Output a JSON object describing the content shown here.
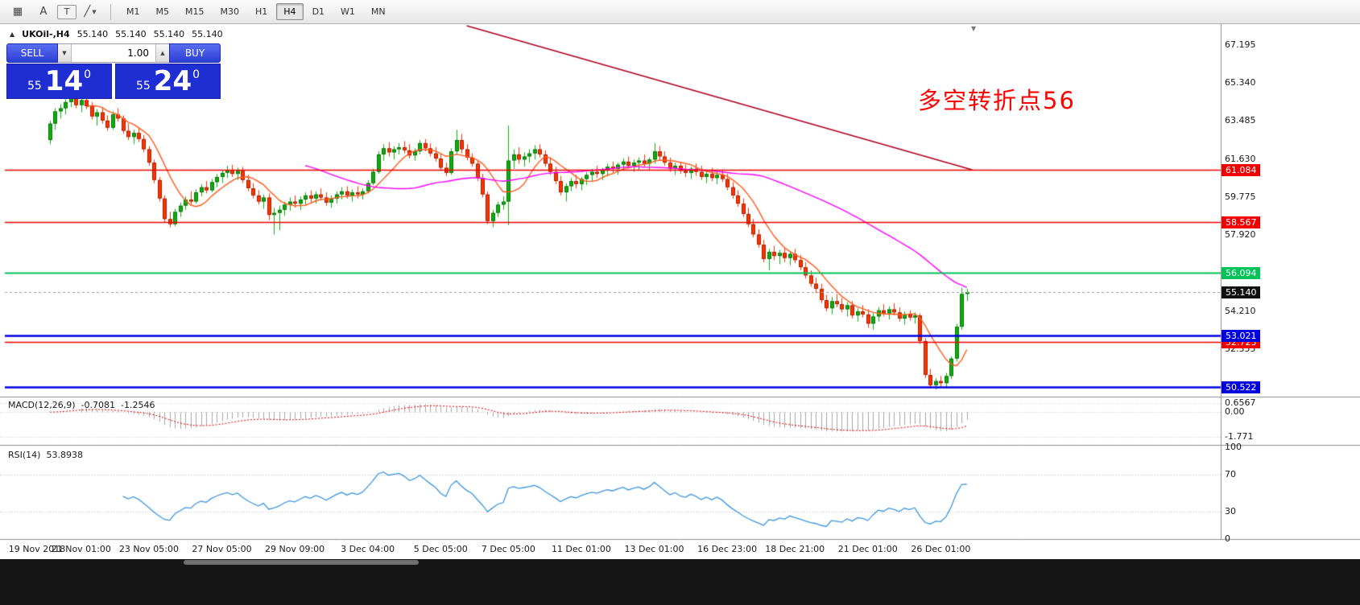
{
  "toolbar": {
    "tools": [
      {
        "name": "grid-tool",
        "glyph": "▦"
      },
      {
        "name": "text-tool",
        "glyph": "A"
      },
      {
        "name": "text-label-tool",
        "glyph": "T"
      },
      {
        "name": "shapes-tool",
        "glyph": "╱",
        "dropdown": "▼"
      }
    ],
    "timeframes": [
      "M1",
      "M5",
      "M15",
      "M30",
      "H1",
      "H4",
      "D1",
      "W1",
      "MN"
    ],
    "active_timeframe": "H4"
  },
  "chart_header": {
    "collapse_icon": "▲",
    "symbol": "UKOil-,H4",
    "open": "55.140",
    "high": "55.140",
    "low": "55.140",
    "close": "55.140",
    "shift_icon": "▼"
  },
  "trade_panel": {
    "sell_label": "SELL",
    "buy_label": "BUY",
    "volume": "1.00",
    "dropdown_icon": "▼",
    "spin_up_icon": "▲",
    "bid": {
      "prefix": "55",
      "big": "14",
      "sup": "0"
    },
    "ask": {
      "prefix": "55",
      "big": "24",
      "sup": "0"
    }
  },
  "annotation": {
    "text": "多空转折点56",
    "color": "#ff0000"
  },
  "price_axis": {
    "labels": [
      {
        "text": "67.195",
        "price": 67.195
      },
      {
        "text": "65.340",
        "price": 65.34
      },
      {
        "text": "63.485",
        "price": 63.485
      },
      {
        "text": "61.630",
        "price": 61.63
      },
      {
        "text": "59.775",
        "price": 59.775
      },
      {
        "text": "57.920",
        "price": 57.92
      },
      {
        "text": "54.210",
        "price": 54.21
      },
      {
        "text": "52.355",
        "price": 52.355
      }
    ]
  },
  "levels": [
    {
      "price": 61.084,
      "tag": "61.084",
      "color": "#f20000",
      "width": 1.4
    },
    {
      "price": 58.567,
      "tag": "58.567",
      "color": "#f20000",
      "width": 1.4
    },
    {
      "price": 56.094,
      "tag": "56.094",
      "color": "#00c45a",
      "width": 2.2
    },
    {
      "price": 53.021,
      "tag": "53.021",
      "color": "#0000e0",
      "width": 2.6
    },
    {
      "price": 52.723,
      "tag": "52.723",
      "color": "#f20000",
      "width": 1.4,
      "clipped": true
    },
    {
      "price": 50.522,
      "tag": "50.522",
      "color": "#0000e0",
      "width": 2.6
    }
  ],
  "current_price": {
    "price": 55.14,
    "tag": "55.140",
    "color": "#111111"
  },
  "trendline": {
    "bar1": 80,
    "price1": 68.12,
    "bar2": 177,
    "price2": 61.1,
    "color": "#b00020"
  },
  "indicators": {
    "macd": {
      "title": "MACD(12,26,9)",
      "value1": "-0.7081",
      "value2": "-1.2546",
      "axis": [
        {
          "text": "0.6567",
          "value": 0.6567
        },
        {
          "text": "0.00",
          "value": 0
        },
        {
          "text": "-1.771",
          "value": -1.771
        }
      ]
    },
    "rsi": {
      "title": "RSI(14)",
      "value": "53.8938",
      "axis": [
        {
          "text": "100",
          "value": 100
        },
        {
          "text": "70",
          "value": 70
        },
        {
          "text": "30",
          "value": 30
        },
        {
          "text": "0",
          "value": 0
        }
      ]
    }
  },
  "time_axis": [
    {
      "text": "19 Nov 2018",
      "bar": -5
    },
    {
      "text": "21 Nov 01:00",
      "bar": 6
    },
    {
      "text": "23 Nov 05:00",
      "bar": 19
    },
    {
      "text": "27 Nov 05:00",
      "bar": 33
    },
    {
      "text": "29 Nov 09:00",
      "bar": 47
    },
    {
      "text": "3 Dec 04:00",
      "bar": 61
    },
    {
      "text": "5 Dec 05:00",
      "bar": 75
    },
    {
      "text": "7 Dec 05:00",
      "bar": 88
    },
    {
      "text": "11 Dec 01:00",
      "bar": 102
    },
    {
      "text": "13 Dec 01:00",
      "bar": 116
    },
    {
      "text": "16 Dec 23:00",
      "bar": 130
    },
    {
      "text": "18 Dec 21:00",
      "bar": 143
    },
    {
      "text": "21 Dec 01:00",
      "bar": 157
    },
    {
      "text": "26 Dec 01:00",
      "bar": 171
    }
  ],
  "chart_data": {
    "type": "candlestick",
    "symbol": "UKOil-",
    "timeframe": "H4",
    "ylim": [
      49.7,
      68.2
    ],
    "up_color": "#0cb00c",
    "down_color": "#ff3300",
    "ma_fast": {
      "period": 8,
      "color": "#ff5a1e"
    },
    "ma_slow": {
      "period": 50,
      "color": "#ff00ff"
    },
    "macd_params": {
      "fast": 12,
      "slow": 26,
      "signal": 9,
      "ylim": [
        -2.25,
        1.0
      ]
    },
    "rsi_params": {
      "period": 14,
      "ylim": [
        0,
        100
      ]
    },
    "candles": [
      [
        62.55,
        63.5,
        62.35,
        63.35
      ],
      [
        63.35,
        64.1,
        63.05,
        63.95
      ],
      [
        63.95,
        64.3,
        63.6,
        64.1
      ],
      [
        64.1,
        64.55,
        63.8,
        64.4
      ],
      [
        64.4,
        64.9,
        64.15,
        64.65
      ],
      [
        64.65,
        64.85,
        64.1,
        64.25
      ],
      [
        64.25,
        64.7,
        63.9,
        64.5
      ],
      [
        64.5,
        64.8,
        64.05,
        64.2
      ],
      [
        64.2,
        64.4,
        63.55,
        63.7
      ],
      [
        63.7,
        64.05,
        63.25,
        63.9
      ],
      [
        63.9,
        64.15,
        63.35,
        63.5
      ],
      [
        63.5,
        63.75,
        63.0,
        63.15
      ],
      [
        63.15,
        63.95,
        63.05,
        63.8
      ],
      [
        63.8,
        64.1,
        63.45,
        63.6
      ],
      [
        63.6,
        63.75,
        62.85,
        63.0
      ],
      [
        63.0,
        63.35,
        62.55,
        62.7
      ],
      [
        62.7,
        63.05,
        62.35,
        62.9
      ],
      [
        62.9,
        63.15,
        62.45,
        62.6
      ],
      [
        62.6,
        62.8,
        61.95,
        62.1
      ],
      [
        62.1,
        62.25,
        61.3,
        61.45
      ],
      [
        61.45,
        61.6,
        60.45,
        60.6
      ],
      [
        60.6,
        60.75,
        59.55,
        59.7
      ],
      [
        59.7,
        59.85,
        58.55,
        58.7
      ],
      [
        58.7,
        59.05,
        58.3,
        58.45
      ],
      [
        58.45,
        59.2,
        58.35,
        59.05
      ],
      [
        59.05,
        59.5,
        58.8,
        59.35
      ],
      [
        59.35,
        59.8,
        59.15,
        59.65
      ],
      [
        59.65,
        60.05,
        59.4,
        59.55
      ],
      [
        59.55,
        60.15,
        59.45,
        60.0
      ],
      [
        60.0,
        60.4,
        59.8,
        60.25
      ],
      [
        60.25,
        60.55,
        59.95,
        60.1
      ],
      [
        60.1,
        60.65,
        60.0,
        60.5
      ],
      [
        60.5,
        60.9,
        60.25,
        60.75
      ],
      [
        60.75,
        61.1,
        60.45,
        60.95
      ],
      [
        60.95,
        61.3,
        60.7,
        61.1
      ],
      [
        61.1,
        61.35,
        60.75,
        60.9
      ],
      [
        60.9,
        61.2,
        60.6,
        61.05
      ],
      [
        61.05,
        61.25,
        60.45,
        60.6
      ],
      [
        60.6,
        60.85,
        60.05,
        60.2
      ],
      [
        60.2,
        60.45,
        59.7,
        59.85
      ],
      [
        59.85,
        60.1,
        59.4,
        59.55
      ],
      [
        59.55,
        59.9,
        59.2,
        59.75
      ],
      [
        59.75,
        59.95,
        58.65,
        58.9
      ],
      [
        58.9,
        59.25,
        57.95,
        59.0
      ],
      [
        59.0,
        59.35,
        58.15,
        59.15
      ],
      [
        59.15,
        59.55,
        58.85,
        59.4
      ],
      [
        59.4,
        59.75,
        59.1,
        59.55
      ],
      [
        59.55,
        59.85,
        59.25,
        59.45
      ],
      [
        59.45,
        59.8,
        59.15,
        59.65
      ],
      [
        59.65,
        60.0,
        59.4,
        59.85
      ],
      [
        59.85,
        60.1,
        59.5,
        59.7
      ],
      [
        59.7,
        60.05,
        59.45,
        59.9
      ],
      [
        59.9,
        60.2,
        59.6,
        59.75
      ],
      [
        59.75,
        60.0,
        59.35,
        59.5
      ],
      [
        59.5,
        59.85,
        59.25,
        59.7
      ],
      [
        59.7,
        60.05,
        59.45,
        59.9
      ],
      [
        59.9,
        60.25,
        59.65,
        60.05
      ],
      [
        60.05,
        60.3,
        59.7,
        59.85
      ],
      [
        59.85,
        60.15,
        59.55,
        60.0
      ],
      [
        60.0,
        60.3,
        59.7,
        59.9
      ],
      [
        59.9,
        60.2,
        59.65,
        60.05
      ],
      [
        60.05,
        60.6,
        59.95,
        60.45
      ],
      [
        60.45,
        61.15,
        60.35,
        61.0
      ],
      [
        61.0,
        62.0,
        60.9,
        61.85
      ],
      [
        61.85,
        62.35,
        61.55,
        62.15
      ],
      [
        62.15,
        62.45,
        61.75,
        61.95
      ],
      [
        61.95,
        62.25,
        61.6,
        62.1
      ],
      [
        62.1,
        62.4,
        61.85,
        62.2
      ],
      [
        62.2,
        62.5,
        61.9,
        62.05
      ],
      [
        62.05,
        62.35,
        61.65,
        61.8
      ],
      [
        61.8,
        62.15,
        61.55,
        62.0
      ],
      [
        62.0,
        62.55,
        61.85,
        62.4
      ],
      [
        62.4,
        62.6,
        62.0,
        62.15
      ],
      [
        62.15,
        62.4,
        61.75,
        61.9
      ],
      [
        61.9,
        62.2,
        61.5,
        61.65
      ],
      [
        61.65,
        61.85,
        61.05,
        61.2
      ],
      [
        61.2,
        61.45,
        60.8,
        60.95
      ],
      [
        60.95,
        62.15,
        60.85,
        62.0
      ],
      [
        62.0,
        63.05,
        61.85,
        62.55
      ],
      [
        62.55,
        62.85,
        61.9,
        62.1
      ],
      [
        62.1,
        62.35,
        61.55,
        61.7
      ],
      [
        61.7,
        61.9,
        61.25,
        61.4
      ],
      [
        61.4,
        61.55,
        60.55,
        60.7
      ],
      [
        60.7,
        60.9,
        59.75,
        59.9
      ],
      [
        59.9,
        60.05,
        58.45,
        58.6
      ],
      [
        58.6,
        59.15,
        58.3,
        59.0
      ],
      [
        59.0,
        59.55,
        58.8,
        59.4
      ],
      [
        59.4,
        59.8,
        59.15,
        59.55
      ],
      [
        59.55,
        63.25,
        58.4,
        61.55
      ],
      [
        61.55,
        62.1,
        61.15,
        61.85
      ],
      [
        61.85,
        62.2,
        61.4,
        61.6
      ],
      [
        61.6,
        61.95,
        61.25,
        61.75
      ],
      [
        61.75,
        62.1,
        61.45,
        61.9
      ],
      [
        61.9,
        62.3,
        61.6,
        62.1
      ],
      [
        62.1,
        62.35,
        61.7,
        61.85
      ],
      [
        61.85,
        62.05,
        61.25,
        61.4
      ],
      [
        61.4,
        61.65,
        60.85,
        61.0
      ],
      [
        61.0,
        61.25,
        60.4,
        60.55
      ],
      [
        60.55,
        60.8,
        59.85,
        60.0
      ],
      [
        60.0,
        60.45,
        59.55,
        60.3
      ],
      [
        60.3,
        60.7,
        60.05,
        60.55
      ],
      [
        60.55,
        60.85,
        60.2,
        60.4
      ],
      [
        60.4,
        60.75,
        60.1,
        60.65
      ],
      [
        60.65,
        61.0,
        60.35,
        60.85
      ],
      [
        60.85,
        61.15,
        60.55,
        61.0
      ],
      [
        61.0,
        61.3,
        60.7,
        60.9
      ],
      [
        60.9,
        61.2,
        60.6,
        61.1
      ],
      [
        61.1,
        61.4,
        60.8,
        61.25
      ],
      [
        61.25,
        61.5,
        60.95,
        61.15
      ],
      [
        61.15,
        61.45,
        60.85,
        61.35
      ],
      [
        61.35,
        61.65,
        61.05,
        61.5
      ],
      [
        61.5,
        61.75,
        61.15,
        61.3
      ],
      [
        61.3,
        61.6,
        61.0,
        61.45
      ],
      [
        61.45,
        61.7,
        61.1,
        61.55
      ],
      [
        61.55,
        61.85,
        61.25,
        61.4
      ],
      [
        61.4,
        61.7,
        61.1,
        61.6
      ],
      [
        61.6,
        62.4,
        61.4,
        62.0
      ],
      [
        62.0,
        62.25,
        61.55,
        61.75
      ],
      [
        61.75,
        62.0,
        61.3,
        61.45
      ],
      [
        61.45,
        61.7,
        61.0,
        61.15
      ],
      [
        61.15,
        61.45,
        60.85,
        61.3
      ],
      [
        61.3,
        61.5,
        60.9,
        61.05
      ],
      [
        61.05,
        61.35,
        60.75,
        60.95
      ],
      [
        60.95,
        61.25,
        60.65,
        61.15
      ],
      [
        61.15,
        61.4,
        60.8,
        61.0
      ],
      [
        61.0,
        61.3,
        60.6,
        60.75
      ],
      [
        60.75,
        61.05,
        60.45,
        60.9
      ],
      [
        60.9,
        61.2,
        60.55,
        60.7
      ],
      [
        60.7,
        61.0,
        60.4,
        60.85
      ],
      [
        60.85,
        61.1,
        60.5,
        60.65
      ],
      [
        60.65,
        60.9,
        60.1,
        60.25
      ],
      [
        60.25,
        60.5,
        59.7,
        59.85
      ],
      [
        59.85,
        60.1,
        59.3,
        59.45
      ],
      [
        59.45,
        59.7,
        58.8,
        58.95
      ],
      [
        58.95,
        59.25,
        58.3,
        58.45
      ],
      [
        58.45,
        58.7,
        57.8,
        57.95
      ],
      [
        57.95,
        58.2,
        57.3,
        57.45
      ],
      [
        57.45,
        57.7,
        56.6,
        56.75
      ],
      [
        56.75,
        57.25,
        56.2,
        57.1
      ],
      [
        57.1,
        57.4,
        56.7,
        56.9
      ],
      [
        56.9,
        57.2,
        56.5,
        57.05
      ],
      [
        57.05,
        57.3,
        56.6,
        56.8
      ],
      [
        56.8,
        57.15,
        56.45,
        57.0
      ],
      [
        57.0,
        57.25,
        56.55,
        56.7
      ],
      [
        56.7,
        56.95,
        56.2,
        56.35
      ],
      [
        56.35,
        56.6,
        55.8,
        55.95
      ],
      [
        55.95,
        56.2,
        55.4,
        55.55
      ],
      [
        55.55,
        55.85,
        55.1,
        55.3
      ],
      [
        55.3,
        55.55,
        54.6,
        54.75
      ],
      [
        54.75,
        55.0,
        54.2,
        54.35
      ],
      [
        54.35,
        54.9,
        54.05,
        54.7
      ],
      [
        54.7,
        55.05,
        54.4,
        54.55
      ],
      [
        54.55,
        54.85,
        54.15,
        54.3
      ],
      [
        54.3,
        54.65,
        53.95,
        54.5
      ],
      [
        54.5,
        54.7,
        53.85,
        54.0
      ],
      [
        54.0,
        54.35,
        53.7,
        54.2
      ],
      [
        54.2,
        54.5,
        53.9,
        54.05
      ],
      [
        54.05,
        54.3,
        53.4,
        53.6
      ],
      [
        53.6,
        54.1,
        53.3,
        53.95
      ],
      [
        53.95,
        54.4,
        53.7,
        54.25
      ],
      [
        54.25,
        54.55,
        53.95,
        54.1
      ],
      [
        54.1,
        54.45,
        53.8,
        54.3
      ],
      [
        54.3,
        54.6,
        54.0,
        54.15
      ],
      [
        54.15,
        54.4,
        53.7,
        53.85
      ],
      [
        53.85,
        54.2,
        53.55,
        54.05
      ],
      [
        54.05,
        54.25,
        53.75,
        53.9
      ],
      [
        53.9,
        54.15,
        53.6,
        54.0
      ],
      [
        54.0,
        54.1,
        52.6,
        52.75
      ],
      [
        52.75,
        52.9,
        50.95,
        51.1
      ],
      [
        51.1,
        51.4,
        50.45,
        50.6
      ],
      [
        50.6,
        50.95,
        50.4,
        50.8
      ],
      [
        50.8,
        51.05,
        50.5,
        50.7
      ],
      [
        50.7,
        51.2,
        50.45,
        51.05
      ],
      [
        51.05,
        52.0,
        50.9,
        51.9
      ],
      [
        51.9,
        53.6,
        51.75,
        53.45
      ],
      [
        53.45,
        55.35,
        53.3,
        55.05
      ],
      [
        55.05,
        55.3,
        54.7,
        55.14
      ]
    ]
  }
}
